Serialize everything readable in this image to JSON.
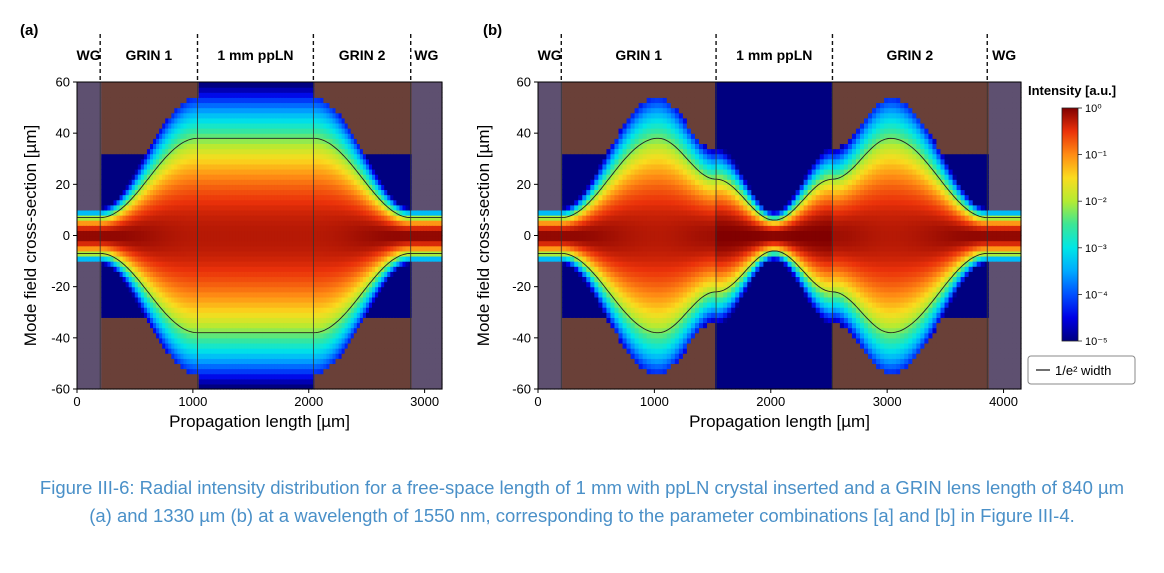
{
  "chart_data": [
    {
      "type": "heatmap",
      "panel_label": "(a)",
      "xlabel": "Propagation length [µm]",
      "ylabel": "Mode field cross-section [µm]",
      "xlim": [
        0,
        3150
      ],
      "ylim": [
        -60,
        60
      ],
      "xticks": [
        0,
        1000,
        2000,
        3000
      ],
      "yticks": [
        -60,
        -40,
        -20,
        0,
        20,
        40,
        60
      ],
      "regions": [
        {
          "name": "WG",
          "x0": 0,
          "x1": 200,
          "kind": "wg"
        },
        {
          "name": "GRIN 1",
          "x0": 200,
          "x1": 1040,
          "kind": "grin"
        },
        {
          "name": "1 mm ppLN",
          "x0": 1040,
          "x1": 2040,
          "kind": "free"
        },
        {
          "name": "GRIN 2",
          "x0": 2040,
          "x1": 2880,
          "kind": "grin"
        },
        {
          "name": "WG",
          "x0": 2880,
          "x1": 3150,
          "kind": "wg"
        }
      ],
      "boundaries": [
        200,
        1040,
        2040,
        2880
      ],
      "beam_width_profile": [
        [
          0,
          7
        ],
        [
          200,
          7
        ],
        [
          1040,
          38
        ],
        [
          2040,
          38
        ],
        [
          2880,
          7
        ],
        [
          3150,
          7
        ]
      ],
      "free_space_min_width": 37
    },
    {
      "type": "heatmap",
      "panel_label": "(b)",
      "xlabel": "Propagation length [µm]",
      "ylabel": "Mode field cross-section [µm]",
      "xlim": [
        0,
        4150
      ],
      "ylim": [
        -60,
        60
      ],
      "xticks": [
        0,
        1000,
        2000,
        3000,
        4000
      ],
      "yticks": [
        -60,
        -40,
        -20,
        0,
        20,
        40,
        60
      ],
      "regions": [
        {
          "name": "WG",
          "x0": 0,
          "x1": 200,
          "kind": "wg"
        },
        {
          "name": "GRIN 1",
          "x0": 200,
          "x1": 1530,
          "kind": "grin"
        },
        {
          "name": "1 mm ppLN",
          "x0": 1530,
          "x1": 2530,
          "kind": "free"
        },
        {
          "name": "GRIN 2",
          "x0": 2530,
          "x1": 3860,
          "kind": "grin"
        },
        {
          "name": "WG",
          "x0": 3860,
          "x1": 4150,
          "kind": "wg"
        }
      ],
      "boundaries": [
        200,
        1530,
        2530,
        3860
      ],
      "beam_width_profile": [
        [
          0,
          7
        ],
        [
          200,
          7
        ],
        [
          1030,
          38
        ],
        [
          1530,
          22
        ],
        [
          2030,
          6
        ],
        [
          2530,
          22
        ],
        [
          3030,
          38
        ],
        [
          3860,
          7
        ],
        [
          4150,
          7
        ]
      ],
      "free_space_min_width": 6
    }
  ],
  "colorbar": {
    "title": "Intensity [a.u.]",
    "ticks": [
      "10⁰",
      "10⁻¹",
      "10⁻²",
      "10⁻³",
      "10⁻⁴",
      "10⁻⁵"
    ],
    "scale": "log",
    "range": [
      1e-05,
      1
    ]
  },
  "legend": {
    "label": "1/e² width"
  },
  "caption": "Figure III-6: Radial intensity distribution for a free-space length of 1 mm with ppLN crystal inserted and a GRIN lens length of 840 µm (a) and 1330 µm (b) at a wavelength of 1550 nm, corresponding to the parameter combinations [a] and [b] in Figure III-4."
}
